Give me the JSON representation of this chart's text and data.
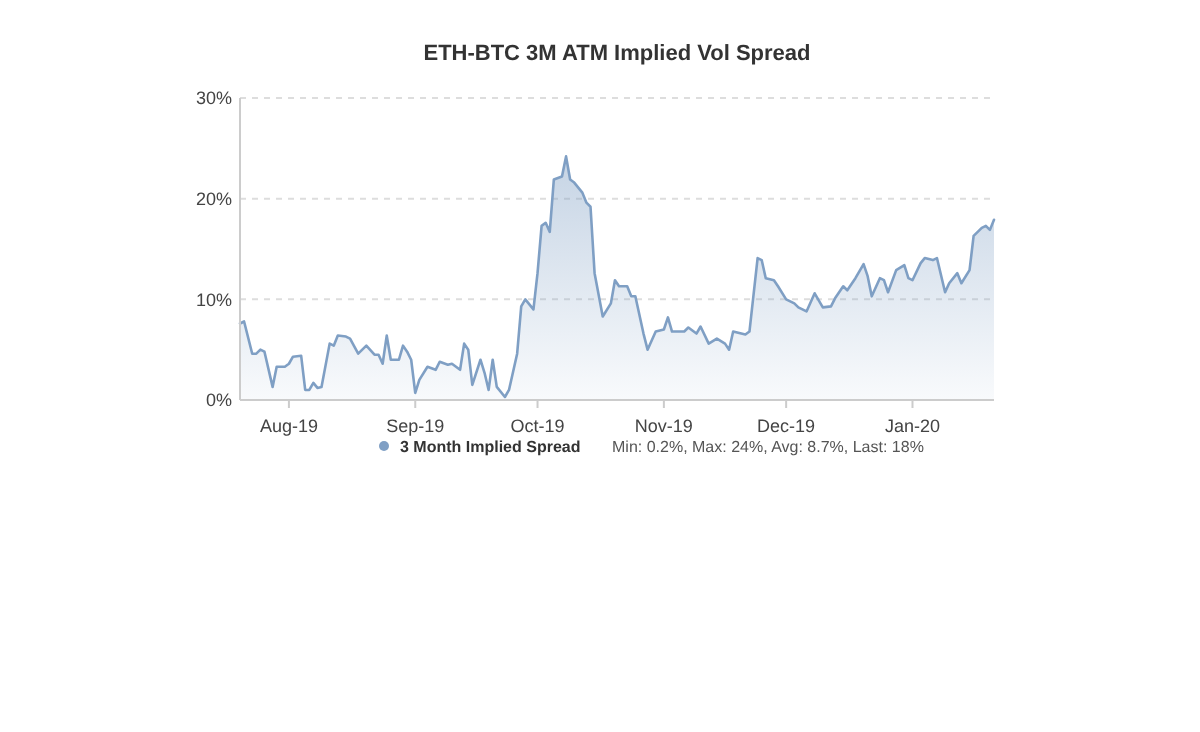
{
  "chart_data": {
    "type": "area",
    "title": "ETH-BTC 3M ATM Implied Vol Spread",
    "x": [
      "2019-07-20",
      "2019-07-21",
      "2019-07-23",
      "2019-07-24",
      "2019-07-25",
      "2019-07-26",
      "2019-07-28",
      "2019-07-29",
      "2019-07-31",
      "2019-08-01",
      "2019-08-02",
      "2019-08-04",
      "2019-08-05",
      "2019-08-06",
      "2019-08-07",
      "2019-08-08",
      "2019-08-09",
      "2019-08-11",
      "2019-08-12",
      "2019-08-13",
      "2019-08-15",
      "2019-08-16",
      "2019-08-18",
      "2019-08-20",
      "2019-08-22",
      "2019-08-23",
      "2019-08-24",
      "2019-08-25",
      "2019-08-26",
      "2019-08-28",
      "2019-08-29",
      "2019-08-30",
      "2019-08-31",
      "2019-09-01",
      "2019-09-02",
      "2019-09-04",
      "2019-09-06",
      "2019-09-07",
      "2019-09-09",
      "2019-09-10",
      "2019-09-12",
      "2019-09-13",
      "2019-09-14",
      "2019-09-15",
      "2019-09-17",
      "2019-09-18",
      "2019-09-19",
      "2019-09-20",
      "2019-09-21",
      "2019-09-23",
      "2019-09-24",
      "2019-09-26",
      "2019-09-27",
      "2019-09-28",
      "2019-09-30",
      "2019-10-01",
      "2019-10-02",
      "2019-10-03",
      "2019-10-04",
      "2019-10-05",
      "2019-10-07",
      "2019-10-08",
      "2019-10-09",
      "2019-10-10",
      "2019-10-12",
      "2019-10-13",
      "2019-10-14",
      "2019-10-15",
      "2019-10-17",
      "2019-10-19",
      "2019-10-20",
      "2019-10-21",
      "2019-10-23",
      "2019-10-24",
      "2019-10-25",
      "2019-10-27",
      "2019-10-28",
      "2019-10-30",
      "2019-11-01",
      "2019-11-02",
      "2019-11-03",
      "2019-11-06",
      "2019-11-07",
      "2019-11-09",
      "2019-11-10",
      "2019-11-12",
      "2019-11-14",
      "2019-11-16",
      "2019-11-17",
      "2019-11-18",
      "2019-11-21",
      "2019-11-22",
      "2019-11-24",
      "2019-11-25",
      "2019-11-26",
      "2019-11-28",
      "2019-11-29",
      "2019-12-01",
      "2019-12-03",
      "2019-12-04",
      "2019-12-06",
      "2019-12-08",
      "2019-12-10",
      "2019-12-12",
      "2019-12-13",
      "2019-12-15",
      "2019-12-16",
      "2019-12-18",
      "2019-12-20",
      "2019-12-21",
      "2019-12-22",
      "2019-12-24",
      "2019-12-25",
      "2019-12-26",
      "2019-12-28",
      "2019-12-30",
      "2019-12-31",
      "2020-01-01",
      "2020-01-03",
      "2020-01-04",
      "2020-01-06",
      "2020-01-07",
      "2020-01-09",
      "2020-01-10",
      "2020-01-12",
      "2020-01-13",
      "2020-01-15",
      "2020-01-16",
      "2020-01-18",
      "2020-01-19",
      "2020-01-20",
      "2020-01-21"
    ],
    "series": [
      {
        "name": "3 Month Implied Spread",
        "color": "#7f9fc4",
        "values": [
          7.6,
          7.8,
          4.6,
          4.6,
          5.0,
          4.8,
          1.3,
          3.3,
          3.3,
          3.6,
          4.3,
          4.4,
          1.0,
          1.0,
          1.7,
          1.2,
          1.3,
          5.6,
          5.4,
          6.4,
          6.3,
          6.1,
          4.6,
          5.4,
          4.5,
          4.5,
          3.6,
          6.4,
          4.0,
          4.0,
          5.4,
          4.8,
          4.0,
          0.7,
          2.0,
          3.3,
          3.0,
          3.8,
          3.5,
          3.6,
          3.0,
          5.6,
          5.0,
          1.5,
          4.0,
          2.7,
          1.0,
          4.0,
          1.3,
          0.3,
          1.0,
          4.6,
          9.3,
          10.0,
          9.0,
          12.6,
          17.3,
          17.6,
          16.7,
          21.9,
          22.2,
          24.2,
          21.9,
          21.6,
          20.6,
          19.6,
          19.2,
          12.6,
          8.3,
          9.6,
          11.9,
          11.3,
          11.3,
          10.3,
          10.3,
          6.6,
          5.0,
          6.8,
          7.0,
          8.2,
          6.8,
          6.8,
          7.2,
          6.6,
          7.3,
          5.6,
          6.1,
          5.6,
          5.0,
          6.8,
          6.5,
          6.8,
          14.1,
          13.9,
          12.1,
          11.9,
          11.3,
          10.0,
          9.6,
          9.2,
          8.8,
          10.6,
          9.2,
          9.3,
          10.1,
          11.3,
          10.9,
          12.1,
          13.5,
          12.3,
          10.3,
          12.1,
          11.9,
          10.7,
          12.9,
          13.4,
          12.1,
          11.9,
          13.6,
          14.1,
          13.9,
          14.1,
          10.7,
          11.6,
          12.6,
          11.6,
          12.9,
          16.3,
          17.1,
          17.3,
          16.9,
          17.9
        ]
      }
    ],
    "xlim": [
      "2019-07-20",
      "2020-01-21"
    ],
    "xticks": [
      {
        "value": "2019-08-01",
        "label": "Aug-19"
      },
      {
        "value": "2019-09-01",
        "label": "Sep-19"
      },
      {
        "value": "2019-10-01",
        "label": "Oct-19"
      },
      {
        "value": "2019-11-01",
        "label": "Nov-19"
      },
      {
        "value": "2019-12-01",
        "label": "Dec-19"
      },
      {
        "value": "2020-01-01",
        "label": "Jan-20"
      }
    ],
    "ylim": [
      0,
      30
    ],
    "yticks": [
      {
        "value": 0,
        "label": "0%"
      },
      {
        "value": 10,
        "label": "10%"
      },
      {
        "value": 20,
        "label": "20%"
      },
      {
        "value": 30,
        "label": "30%"
      }
    ],
    "grid": "y",
    "legend": "bottom",
    "marker": "none",
    "annotations": [
      "Min: 0.2%, Max: 24%, Avg: 8.7%, Last: 18%"
    ]
  }
}
